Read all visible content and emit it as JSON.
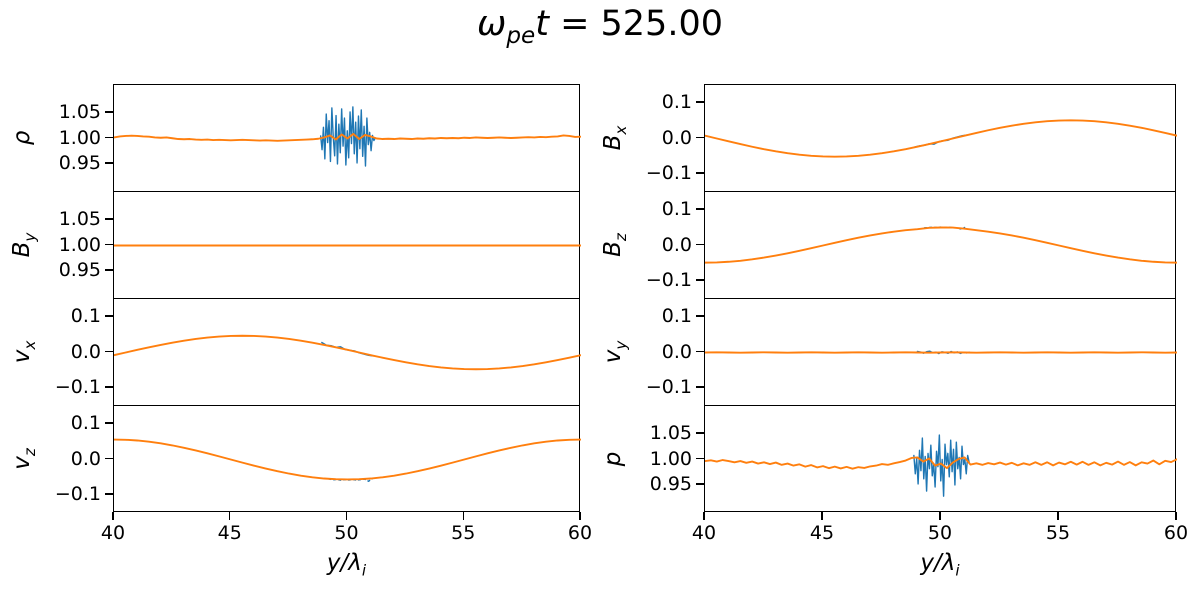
{
  "title": {
    "symbol": "ω",
    "symbol_sub": "pe",
    "variable": "t",
    "rest": " = 525.00"
  },
  "colors": {
    "blue": "#1f77b4",
    "orange": "#ff7f0e",
    "spine": "#000000",
    "background": "#ffffff"
  },
  "xaxis": {
    "label_main": "y/λ",
    "label_sub": "i",
    "range": [
      40,
      60
    ],
    "ticks": [
      "40",
      "45",
      "50",
      "55",
      "60"
    ]
  },
  "chart_data": {
    "type": "line",
    "grid": false,
    "legend": "none",
    "xlim": [
      40,
      60
    ],
    "panels": [
      {
        "id": "rho",
        "label_main": "ρ",
        "label_sub": "",
        "col": 0,
        "row": 0,
        "ylim": [
          0.895,
          1.105
        ],
        "yticks": [
          1.05,
          1.0,
          0.95
        ],
        "ytick_labels": [
          "1.05",
          "1.00",
          "0.95"
        ],
        "series": [
          {
            "name": "raw",
            "color": "blue",
            "x_start": 48.85,
            "x_step": 0.06,
            "values": [
              1.005,
              0.978,
              1.022,
              0.96,
              1.048,
              0.992,
              1.035,
              0.955,
              1.06,
              1.002,
              0.966,
              1.045,
              0.95,
              1.028,
              0.972,
              1.058,
              0.985,
              1.04,
              0.948,
              1.015,
              0.962,
              1.052,
              0.99,
              1.062,
              0.97,
              1.032,
              0.952,
              1.044,
              0.98,
              1.056,
              0.965,
              1.024,
              0.946,
              1.04,
              0.988,
              1.012,
              0.976,
              1.006,
              0.996,
              1.001
            ]
          },
          {
            "name": "smooth",
            "color": "orange",
            "x_start": 40,
            "x_step": 0.25,
            "values": [
              1.002,
              1.004,
              1.005,
              1.0055,
              1.005,
              1.004,
              1.0035,
              1.002,
              1.0015,
              1.002,
              1.0005,
              0.999,
              0.9985,
              0.999,
              0.998,
              0.9975,
              0.998,
              0.997,
              0.9975,
              0.997,
              0.9965,
              0.997,
              0.9975,
              0.997,
              0.9965,
              0.996,
              0.9965,
              0.996,
              0.9955,
              0.996,
              0.9965,
              0.997,
              0.9975,
              0.998,
              0.9985,
              0.9995,
              1.002,
              1.006,
              0.998,
              1.008,
              1.0,
              1.009,
              0.999,
              1.007,
              1.004,
              1.0,
              0.999,
              0.9995,
              0.999,
              1.0,
              0.9995,
              0.999,
              1.0,
              0.9995,
              1.0005,
              1.0,
              1.001,
              1.0005,
              1.001,
              1.0005,
              1.0015,
              1.001,
              1.002,
              1.0015,
              1.001,
              1.0015,
              1.002,
              1.0015,
              1.001,
              1.0015,
              1.002,
              1.0025,
              1.002,
              1.003,
              1.0025,
              1.0035,
              1.004,
              1.006,
              1.005,
              1.003,
              1.0035
            ]
          }
        ]
      },
      {
        "id": "By",
        "label_main": "B",
        "label_sub": "y",
        "col": 0,
        "row": 1,
        "ylim": [
          0.895,
          1.105
        ],
        "yticks": [
          1.05,
          1.0,
          0.95
        ],
        "ytick_labels": [
          "1.05",
          "1.00",
          "0.95"
        ],
        "series": [
          {
            "name": "smooth",
            "color": "orange",
            "x_start": 40,
            "x_step": 0.5,
            "values": [
              1,
              1,
              1,
              1,
              1,
              1,
              1,
              1,
              1,
              1,
              1,
              1,
              1,
              1,
              1,
              1,
              1,
              1,
              1,
              1,
              1,
              1,
              1,
              1,
              1,
              1,
              1,
              1,
              1,
              1,
              1,
              1,
              1,
              1,
              1,
              1,
              1,
              1,
              1,
              1,
              1
            ]
          }
        ]
      },
      {
        "id": "vx",
        "label_main": "v",
        "label_sub": "x",
        "col": 0,
        "row": 2,
        "ylim": [
          -0.15,
          0.15
        ],
        "yticks": [
          0.1,
          0.0,
          -0.1
        ],
        "ytick_labels": [
          "0.1",
          "0.0",
          "−0.1"
        ],
        "series": [
          {
            "name": "raw",
            "color": "blue",
            "x_start": 48.9,
            "x_step": 0.2,
            "values": [
              0.028,
              0.0205,
              0.019,
              0.0145,
              0.016,
              0.0085,
              0.006,
              0.0045,
              -0.001,
              -0.0045,
              -0.008,
              -0.0095
            ]
          },
          {
            "name": "smooth",
            "color": "orange",
            "x_start": 40,
            "x_step": 0.5,
            "values": [
              -0.0074,
              0,
              0.0074,
              0.0145,
              0.0213,
              0.0276,
              0.0332,
              0.038,
              0.0419,
              0.0447,
              0.0464,
              0.047,
              0.0464,
              0.0447,
              0.0419,
              0.038,
              0.0332,
              0.0276,
              0.0213,
              0.0145,
              0.0074,
              0,
              -0.0074,
              -0.0145,
              -0.0213,
              -0.0276,
              -0.0332,
              -0.038,
              -0.0419,
              -0.0447,
              -0.0464,
              -0.047,
              -0.0464,
              -0.0447,
              -0.0419,
              -0.038,
              -0.0332,
              -0.0276,
              -0.0213,
              -0.0145,
              -0.0074
            ]
          }
        ]
      },
      {
        "id": "vz",
        "label_main": "v",
        "label_sub": "z",
        "col": 0,
        "row": 3,
        "ylim": [
          -0.15,
          0.15
        ],
        "yticks": [
          0.1,
          0.0,
          -0.1
        ],
        "ytick_labels": [
          "0.1",
          "0.0",
          "−0.1"
        ],
        "series": [
          {
            "name": "raw",
            "color": "blue",
            "x_start": 49.2,
            "x_step": 0.17,
            "dash": "2,3",
            "values": [
              -0.0545,
              -0.057,
              -0.056,
              -0.058,
              -0.0565,
              -0.0575,
              -0.056,
              -0.058,
              -0.0565,
              -0.055,
              -0.061,
              -0.0535
            ]
          },
          {
            "name": "smooth",
            "color": "orange",
            "x_start": 40,
            "x_step": 0.5,
            "values": [
              0.056,
              0.0553,
              0.0533,
              0.0499,
              0.0453,
              0.0396,
              0.0329,
              0.0254,
              0.0173,
              0.0088,
              0,
              -0.0088,
              -0.0173,
              -0.0254,
              -0.0329,
              -0.0396,
              -0.0453,
              -0.0499,
              -0.0533,
              -0.0553,
              -0.056,
              -0.0553,
              -0.0533,
              -0.0499,
              -0.0453,
              -0.0396,
              -0.0329,
              -0.0254,
              -0.0173,
              -0.0088,
              0,
              0.0088,
              0.0173,
              0.0254,
              0.0329,
              0.0396,
              0.0453,
              0.0499,
              0.0533,
              0.0553,
              0.056
            ]
          }
        ]
      },
      {
        "id": "Bx",
        "label_main": "B",
        "label_sub": "x",
        "col": 1,
        "row": 0,
        "ylim": [
          -0.15,
          0.15
        ],
        "yticks": [
          0.1,
          0.0,
          -0.1
        ],
        "ytick_labels": [
          "0.1",
          "0.0",
          "−0.1"
        ],
        "series": [
          {
            "name": "raw",
            "color": "blue",
            "x_start": 48.9,
            "x_step": 0.2,
            "values": [
              -0.0235,
              -0.0205,
              -0.019,
              -0.015,
              -0.016,
              -0.009,
              -0.006,
              -0.005,
              0.001,
              0.0045,
              0.008,
              0.0095
            ]
          },
          {
            "name": "smooth",
            "color": "orange",
            "x_start": 40,
            "x_step": 0.5,
            "values": [
              0.008,
              0,
              -0.008,
              -0.0157,
              -0.0231,
              -0.03,
              -0.036,
              -0.0412,
              -0.0454,
              -0.0485,
              -0.0504,
              -0.051,
              -0.0504,
              -0.0485,
              -0.0454,
              -0.0412,
              -0.036,
              -0.03,
              -0.0231,
              -0.0157,
              -0.008,
              0,
              0.008,
              0.0157,
              0.0231,
              0.03,
              0.036,
              0.0412,
              0.0454,
              0.0485,
              0.0504,
              0.051,
              0.0504,
              0.0485,
              0.0454,
              0.0412,
              0.036,
              0.03,
              0.0231,
              0.0157,
              0.008
            ]
          }
        ]
      },
      {
        "id": "Bz",
        "label_main": "B",
        "label_sub": "z",
        "col": 1,
        "row": 1,
        "ylim": [
          -0.15,
          0.15
        ],
        "yticks": [
          0.1,
          0.0,
          -0.1
        ],
        "ytick_labels": [
          "0.1",
          "0.0",
          "−0.1"
        ],
        "series": [
          {
            "name": "raw",
            "color": "blue",
            "x_start": 49.3,
            "x_step": 0.17,
            "dash": "2,3",
            "values": [
              0.0495,
              0.0505,
              0.051,
              0.0505,
              0.0515,
              0.0505,
              0.051,
              0.0505,
              0.0495,
              0.0465,
              0.0505
            ]
          },
          {
            "name": "smooth",
            "color": "orange",
            "x_start": 40,
            "x_step": 0.5,
            "values": [
              -0.048,
              -0.0474,
              -0.0456,
              -0.0428,
              -0.0388,
              -0.0339,
              -0.0282,
              -0.0218,
              -0.0148,
              -0.0075,
              0,
              0.0075,
              0.0148,
              0.0218,
              0.0282,
              0.0339,
              0.0388,
              0.0428,
              0.0456,
              0.0495,
              0.0505,
              0.0502,
              0.047,
              0.0428,
              0.0388,
              0.0339,
              0.0282,
              0.0218,
              0.0148,
              0.0075,
              0,
              -0.0075,
              -0.0148,
              -0.0218,
              -0.0282,
              -0.0339,
              -0.0388,
              -0.0428,
              -0.0456,
              -0.0474,
              -0.048
            ]
          }
        ]
      },
      {
        "id": "vy",
        "label_main": "v",
        "label_sub": "y",
        "col": 1,
        "row": 2,
        "ylim": [
          -0.15,
          0.15
        ],
        "yticks": [
          0.1,
          0.0,
          -0.1
        ],
        "ytick_labels": [
          "0.1",
          "0.0",
          "−0.1"
        ],
        "series": [
          {
            "name": "raw",
            "color": "blue",
            "x_start": 49.0,
            "x_step": 0.13,
            "values": [
              0.003,
              0.0012,
              -0.002,
              0.0022,
              0.0038,
              -0.0008,
              0.001,
              -0.003,
              0.002,
              0.0004,
              -0.0022,
              0.0028,
              -0.001,
              0.0018,
              -0.0026,
              0.0008,
              -0.0012,
              0.0005
            ]
          },
          {
            "name": "smooth",
            "color": "orange",
            "x_start": 40,
            "x_step": 0.5,
            "values": [
              0,
              0.0005,
              0,
              -0.0005,
              0,
              0.0005,
              0,
              -0.0005,
              0,
              0.0005,
              0,
              -0.0005,
              0,
              0.0005,
              0,
              -0.0005,
              0,
              0.0005,
              0,
              -0.0005,
              0,
              0.0005,
              0,
              -0.0005,
              0,
              0.0005,
              0,
              -0.0005,
              0,
              0.0005,
              0,
              -0.0005,
              0,
              0.0005,
              0,
              -0.0005,
              0,
              0.0005,
              0,
              -0.0005,
              0
            ]
          }
        ]
      },
      {
        "id": "p",
        "label_main": "p",
        "label_sub": "",
        "col": 1,
        "row": 3,
        "ylim": [
          0.895,
          1.105
        ],
        "yticks": [
          1.05,
          1.0,
          0.95
        ],
        "ytick_labels": [
          "1.05",
          "1.00",
          "0.95"
        ],
        "series": [
          {
            "name": "raw",
            "color": "blue",
            "x_start": 48.85,
            "x_step": 0.06,
            "values": [
              1.008,
              0.972,
              1.002,
              0.952,
              1.018,
              0.978,
              1.042,
              0.962,
              1.006,
              0.938,
              1.012,
              0.982,
              1.028,
              0.968,
              0.992,
              0.946,
              1.016,
              0.986,
              1.048,
              0.958,
              1.0,
              0.928,
              1.03,
              0.99,
              1.012,
              0.966,
              1.038,
              0.976,
              1.02,
              0.95,
              1.034,
              0.982,
              1.004,
              0.962,
              1.026,
              0.99,
              1.0,
              0.972,
              1.008,
              0.995
            ]
          },
          {
            "name": "smooth",
            "color": "orange",
            "x_start": 40,
            "x_step": 0.25,
            "values": [
              0.997,
              0.9985,
              0.996,
              0.999,
              0.997,
              0.9945,
              0.997,
              0.9935,
              0.996,
              0.992,
              0.9945,
              0.991,
              0.994,
              0.9895,
              0.992,
              0.988,
              0.9905,
              0.986,
              0.989,
              0.9845,
              0.987,
              0.983,
              0.986,
              0.9825,
              0.9855,
              0.982,
              0.985,
              0.9835,
              0.9865,
              0.988,
              0.991,
              0.9895,
              0.9925,
              0.995,
              0.998,
              1.003,
              1.004,
              0.996,
              1.002,
              0.988,
              0.992,
              0.983,
              0.994,
              1.001,
              1.004,
              0.99,
              0.9925,
              0.9895,
              0.993,
              0.9905,
              0.994,
              0.99,
              0.9935,
              0.9885,
              0.9925,
              0.9895,
              0.9945,
              0.9895,
              0.9945,
              0.9885,
              0.994,
              0.9905,
              0.9955,
              0.99,
              0.9955,
              0.9895,
              0.9945,
              0.9885,
              0.9935,
              0.99,
              0.996,
              0.9895,
              0.995,
              0.9885,
              0.9945,
              0.992,
              0.998,
              0.9905,
              0.9975,
              0.995,
              1.0005
            ]
          }
        ]
      }
    ]
  }
}
